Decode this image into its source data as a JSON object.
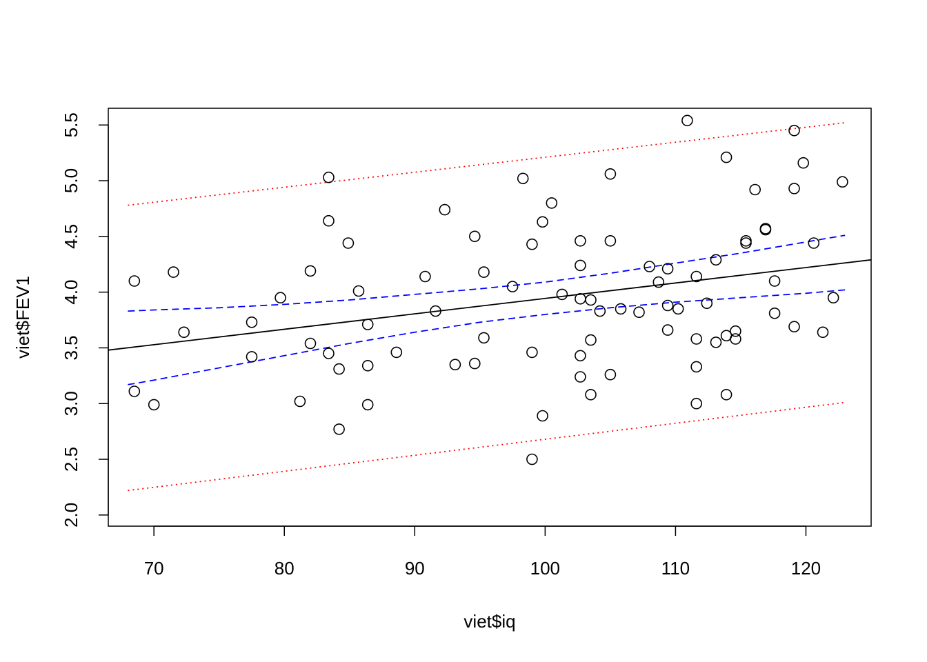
{
  "chart_data": {
    "type": "scatter",
    "title": "",
    "xlabel": "viet$iq",
    "ylabel": "viet$FEV1",
    "xlim": [
      66.5,
      125
    ],
    "ylim": [
      1.9,
      5.65
    ],
    "x_ticks": [
      70,
      80,
      90,
      100,
      110,
      120
    ],
    "x_tick_labels": [
      "70",
      "80",
      "90",
      "100",
      "110",
      "120"
    ],
    "y_ticks": [
      2.0,
      2.5,
      3.0,
      3.5,
      4.0,
      4.5,
      5.0,
      5.5
    ],
    "y_tick_labels": [
      "2.0",
      "2.5",
      "3.0",
      "3.5",
      "4.0",
      "4.5",
      "5.0",
      "5.5"
    ],
    "grid": false,
    "legend": "none",
    "points": [
      {
        "x": 68.5,
        "y": 4.1
      },
      {
        "x": 68.5,
        "y": 3.11
      },
      {
        "x": 70.0,
        "y": 2.99
      },
      {
        "x": 71.5,
        "y": 4.18
      },
      {
        "x": 72.3,
        "y": 3.64
      },
      {
        "x": 77.5,
        "y": 3.73
      },
      {
        "x": 77.5,
        "y": 3.42
      },
      {
        "x": 79.7,
        "y": 3.95
      },
      {
        "x": 81.2,
        "y": 3.02
      },
      {
        "x": 82.0,
        "y": 4.19
      },
      {
        "x": 82.0,
        "y": 3.54
      },
      {
        "x": 83.4,
        "y": 5.03
      },
      {
        "x": 83.4,
        "y": 4.64
      },
      {
        "x": 83.4,
        "y": 3.45
      },
      {
        "x": 84.2,
        "y": 3.31
      },
      {
        "x": 84.2,
        "y": 2.77
      },
      {
        "x": 84.9,
        "y": 4.44
      },
      {
        "x": 85.7,
        "y": 4.01
      },
      {
        "x": 86.4,
        "y": 3.71
      },
      {
        "x": 86.4,
        "y": 3.34
      },
      {
        "x": 86.4,
        "y": 2.99
      },
      {
        "x": 88.6,
        "y": 3.46
      },
      {
        "x": 90.8,
        "y": 4.14
      },
      {
        "x": 91.6,
        "y": 3.83
      },
      {
        "x": 92.3,
        "y": 4.74
      },
      {
        "x": 93.1,
        "y": 3.35
      },
      {
        "x": 94.6,
        "y": 4.5
      },
      {
        "x": 94.6,
        "y": 3.36
      },
      {
        "x": 95.3,
        "y": 4.18
      },
      {
        "x": 95.3,
        "y": 3.59
      },
      {
        "x": 97.5,
        "y": 4.05
      },
      {
        "x": 98.3,
        "y": 5.02
      },
      {
        "x": 99.0,
        "y": 4.43
      },
      {
        "x": 99.0,
        "y": 3.46
      },
      {
        "x": 99.0,
        "y": 2.5
      },
      {
        "x": 99.8,
        "y": 4.63
      },
      {
        "x": 99.8,
        "y": 2.89
      },
      {
        "x": 100.5,
        "y": 4.8
      },
      {
        "x": 101.3,
        "y": 3.98
      },
      {
        "x": 102.7,
        "y": 4.46
      },
      {
        "x": 102.7,
        "y": 4.24
      },
      {
        "x": 102.7,
        "y": 3.94
      },
      {
        "x": 102.7,
        "y": 3.43
      },
      {
        "x": 102.7,
        "y": 3.24
      },
      {
        "x": 103.5,
        "y": 3.93
      },
      {
        "x": 103.5,
        "y": 3.57
      },
      {
        "x": 103.5,
        "y": 3.08
      },
      {
        "x": 104.2,
        "y": 3.83
      },
      {
        "x": 105.0,
        "y": 5.06
      },
      {
        "x": 105.0,
        "y": 4.46
      },
      {
        "x": 105.0,
        "y": 3.26
      },
      {
        "x": 105.8,
        "y": 3.85
      },
      {
        "x": 107.2,
        "y": 3.82
      },
      {
        "x": 108.0,
        "y": 4.23
      },
      {
        "x": 108.7,
        "y": 4.09
      },
      {
        "x": 109.4,
        "y": 4.21
      },
      {
        "x": 109.4,
        "y": 3.88
      },
      {
        "x": 109.4,
        "y": 3.66
      },
      {
        "x": 110.2,
        "y": 3.85
      },
      {
        "x": 110.9,
        "y": 5.54
      },
      {
        "x": 111.6,
        "y": 4.14
      },
      {
        "x": 111.6,
        "y": 3.58
      },
      {
        "x": 111.6,
        "y": 3.33
      },
      {
        "x": 111.6,
        "y": 3.0
      },
      {
        "x": 112.4,
        "y": 3.9
      },
      {
        "x": 113.1,
        "y": 4.29
      },
      {
        "x": 113.1,
        "y": 3.55
      },
      {
        "x": 113.9,
        "y": 5.21
      },
      {
        "x": 113.9,
        "y": 3.61
      },
      {
        "x": 113.9,
        "y": 3.08
      },
      {
        "x": 114.6,
        "y": 3.65
      },
      {
        "x": 114.6,
        "y": 3.58
      },
      {
        "x": 115.4,
        "y": 4.46
      },
      {
        "x": 115.4,
        "y": 4.44
      },
      {
        "x": 116.1,
        "y": 4.92
      },
      {
        "x": 116.9,
        "y": 4.57
      },
      {
        "x": 116.9,
        "y": 4.56
      },
      {
        "x": 117.6,
        "y": 4.1
      },
      {
        "x": 117.6,
        "y": 3.81
      },
      {
        "x": 119.1,
        "y": 5.45
      },
      {
        "x": 119.1,
        "y": 4.93
      },
      {
        "x": 119.1,
        "y": 3.69
      },
      {
        "x": 119.8,
        "y": 5.16
      },
      {
        "x": 120.6,
        "y": 4.44
      },
      {
        "x": 121.3,
        "y": 3.64
      },
      {
        "x": 122.1,
        "y": 3.95
      },
      {
        "x": 122.8,
        "y": 4.99
      }
    ],
    "regression_line": {
      "color": "#000000",
      "style": "solid",
      "x": [
        66.5,
        125.0
      ],
      "y": [
        3.48,
        4.29
      ]
    },
    "confidence_band": {
      "color": "#0000FF",
      "style": "dashed",
      "x": [
        68,
        70,
        75,
        80,
        85,
        90,
        95,
        100,
        105,
        110,
        115,
        120,
        123
      ],
      "upper": [
        3.83,
        3.84,
        3.86,
        3.89,
        3.93,
        3.98,
        4.03,
        4.09,
        4.17,
        4.26,
        4.35,
        4.45,
        4.51
      ],
      "lower": [
        3.17,
        3.21,
        3.32,
        3.43,
        3.54,
        3.64,
        3.73,
        3.8,
        3.86,
        3.91,
        3.95,
        3.99,
        4.02
      ]
    },
    "prediction_band": {
      "color": "#FF0000",
      "style": "dotted",
      "x": [
        68,
        123
      ],
      "upper": [
        4.78,
        5.52
      ],
      "lower": [
        2.22,
        3.01
      ]
    }
  }
}
